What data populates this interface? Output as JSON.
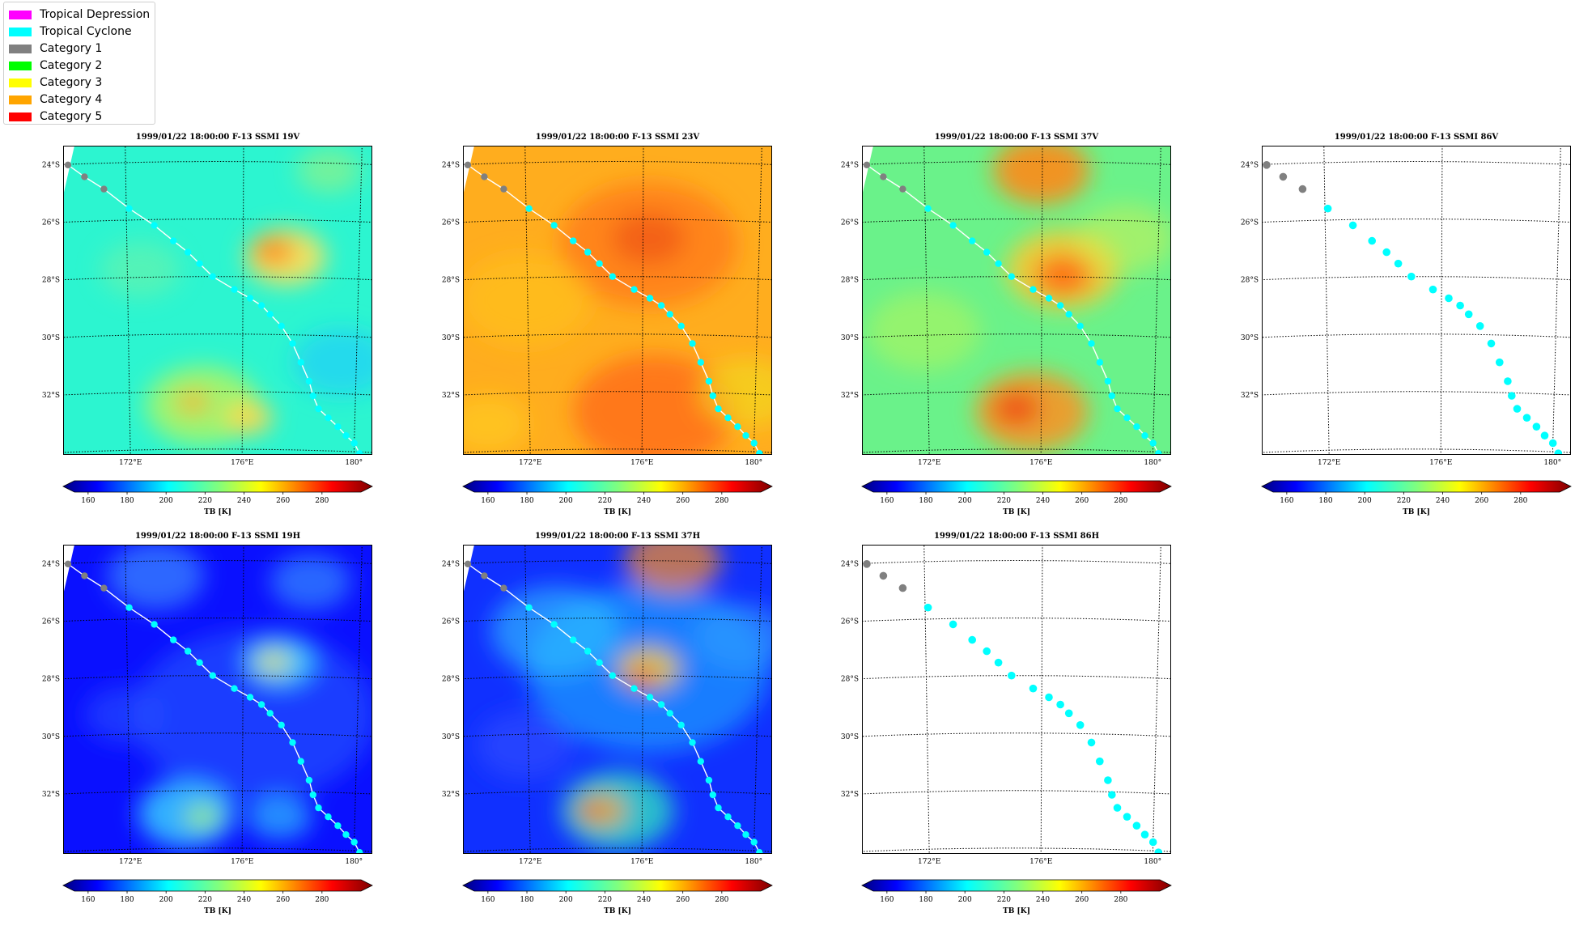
{
  "legend": {
    "items": [
      {
        "label": "Tropical Depression",
        "color": "#ff00ff"
      },
      {
        "label": "Tropical Cyclone",
        "color": "#00ffff"
      },
      {
        "label": "Category 1",
        "color": "#808080"
      },
      {
        "label": "Category 2",
        "color": "#00ff00"
      },
      {
        "label": "Category 3",
        "color": "#ffff00"
      },
      {
        "label": "Category 4",
        "color": "#ffa500"
      },
      {
        "label": "Category 5",
        "color": "#ff0000"
      }
    ]
  },
  "chart_data": [
    {
      "type": "heatmap",
      "title": "1999/01/22 18:00:00  F-13 SSMI 19V",
      "background": "cyan",
      "track_line": true,
      "cbar_label": "TB [K]"
    },
    {
      "type": "heatmap",
      "title": "1999/01/22 18:00:00  F-13 SSMI 23V",
      "background": "orange",
      "track_line": true,
      "cbar_label": "TB [K]"
    },
    {
      "type": "heatmap",
      "title": "1999/01/22 18:00:00  F-13 SSMI 37V",
      "background": "green",
      "track_line": true,
      "cbar_label": "TB [K]"
    },
    {
      "type": "heatmap",
      "title": "1999/01/22 18:00:00  F-13 SSMI 86V",
      "background": "white",
      "track_line": false,
      "cbar_label": "TB [K]"
    },
    {
      "type": "heatmap",
      "title": "1999/01/22 18:00:00  F-13 SSMI 19H",
      "background": "blue",
      "track_line": true,
      "cbar_label": "TB [K]"
    },
    {
      "type": "heatmap",
      "title": "1999/01/22 18:00:00  F-13 SSMI 37H",
      "background": "blue2",
      "track_line": true,
      "cbar_label": "TB [K]"
    },
    {
      "type": "heatmap",
      "title": "1999/01/22 18:00:00  F-13 SSMI 86H",
      "background": "white",
      "track_line": false,
      "cbar_label": "TB [K]"
    }
  ],
  "shared": {
    "lat_ticks": [
      "24°S",
      "26°S",
      "28°S",
      "30°S",
      "32°S"
    ],
    "lon_ticks": [
      "172°E",
      "176°E",
      "180°"
    ],
    "cbar_ticks": [
      "160",
      "180",
      "200",
      "220",
      "240",
      "260",
      "280"
    ],
    "cbar_range": [
      153,
      300
    ],
    "track": [
      {
        "lon": 170.05,
        "lat": -24.02,
        "cat": "Category 1"
      },
      {
        "lon": 170.6,
        "lat": -24.45,
        "cat": "Category 1"
      },
      {
        "lon": 171.25,
        "lat": -24.9,
        "cat": "Category 1"
      },
      {
        "lon": 172.1,
        "lat": -25.6,
        "cat": "Tropical Cyclone"
      },
      {
        "lon": 172.95,
        "lat": -26.2,
        "cat": "Tropical Cyclone"
      },
      {
        "lon": 173.6,
        "lat": -26.75,
        "cat": "Tropical Cyclone"
      },
      {
        "lon": 174.1,
        "lat": -27.15,
        "cat": "Tropical Cyclone"
      },
      {
        "lon": 174.5,
        "lat": -27.55,
        "cat": "Tropical Cyclone"
      },
      {
        "lon": 174.95,
        "lat": -28.0,
        "cat": "Tropical Cyclone"
      },
      {
        "lon": 175.7,
        "lat": -28.45,
        "cat": "Tropical Cyclone"
      },
      {
        "lon": 176.25,
        "lat": -28.75,
        "cat": "Tropical Cyclone"
      },
      {
        "lon": 176.65,
        "lat": -29.0,
        "cat": "Tropical Cyclone"
      },
      {
        "lon": 176.95,
        "lat": -29.3,
        "cat": "Tropical Cyclone"
      },
      {
        "lon": 177.35,
        "lat": -29.7,
        "cat": "Tropical Cyclone"
      },
      {
        "lon": 177.75,
        "lat": -30.3,
        "cat": "Tropical Cyclone"
      },
      {
        "lon": 178.05,
        "lat": -30.95,
        "cat": "Tropical Cyclone"
      },
      {
        "lon": 178.35,
        "lat": -31.6,
        "cat": "Tropical Cyclone"
      },
      {
        "lon": 178.5,
        "lat": -32.1,
        "cat": "Tropical Cyclone"
      },
      {
        "lon": 178.7,
        "lat": -32.55,
        "cat": "Tropical Cyclone"
      },
      {
        "lon": 179.05,
        "lat": -32.85,
        "cat": "Tropical Cyclone"
      },
      {
        "lon": 179.4,
        "lat": -33.15,
        "cat": "Tropical Cyclone"
      },
      {
        "lon": 179.7,
        "lat": -33.45,
        "cat": "Tropical Cyclone"
      },
      {
        "lon": 180.0,
        "lat": -33.7,
        "cat": "Tropical Cyclone"
      },
      {
        "lon": 180.2,
        "lat": -34.05,
        "cat": "Tropical Cyclone"
      }
    ]
  }
}
